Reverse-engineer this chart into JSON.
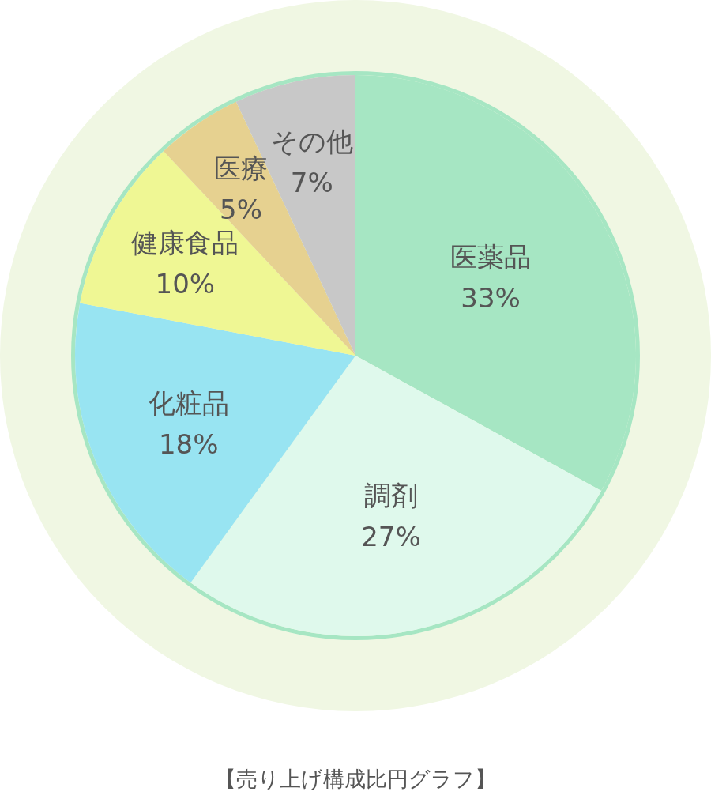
{
  "chart_data": {
    "type": "pie",
    "title": "【売り上げ構成比円グラフ】",
    "categories": [
      "医薬品",
      "調剤",
      "化粧品",
      "健康食品",
      "医療",
      "その他"
    ],
    "values": [
      33,
      27,
      18,
      10,
      5,
      7
    ],
    "colors": [
      "#a6e6c3",
      "#dff9ec",
      "#98e4f2",
      "#eff794",
      "#e6d190",
      "#c8c8c8"
    ],
    "value_labels": [
      "33%",
      "27%",
      "18%",
      "10%",
      "5%",
      "7%"
    ]
  }
}
